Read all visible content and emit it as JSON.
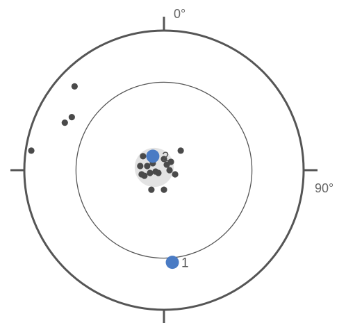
{
  "chart_data": {
    "type": "scatter",
    "title": "",
    "axes": {
      "north_label": "0°",
      "east_label": "90°"
    },
    "colors": {
      "primitive_circle": "#555555",
      "inner_circle": "#555555",
      "data_points": "#4a4a4a",
      "mean_poles": "#4a7bc4",
      "confidence_cone": "#e3e3e3",
      "labels": "#666666"
    },
    "inner_circle_ratio": 0.63,
    "confidence_cone_ratio": 0.14,
    "points": [
      {
        "x": -0.64,
        "y": 0.6
      },
      {
        "x": -0.66,
        "y": 0.38
      },
      {
        "x": -0.71,
        "y": 0.34
      },
      {
        "x": -0.95,
        "y": 0.14
      },
      {
        "x": 0.12,
        "y": 0.14
      },
      {
        "x": -0.15,
        "y": 0.1
      },
      {
        "x": -0.08,
        "y": 0.05
      },
      {
        "x": 0.0,
        "y": 0.08
      },
      {
        "x": -0.12,
        "y": 0.03
      },
      {
        "x": -0.06,
        "y": -0.01
      },
      {
        "x": -0.1,
        "y": -0.02
      },
      {
        "x": -0.04,
        "y": -0.02
      },
      {
        "x": -0.16,
        "y": -0.03
      },
      {
        "x": -0.14,
        "y": -0.04
      },
      {
        "x": 0.02,
        "y": 0.04
      },
      {
        "x": 0.05,
        "y": 0.06
      },
      {
        "x": 0.04,
        "y": 0.0
      },
      {
        "x": 0.08,
        "y": -0.03
      },
      {
        "x": -0.09,
        "y": -0.14
      },
      {
        "x": 0.0,
        "y": -0.14
      },
      {
        "x": -0.17,
        "y": 0.03
      }
    ],
    "mean_poles": [
      {
        "label": "1",
        "x": 0.06,
        "y": -0.66
      },
      {
        "label": "2",
        "x": -0.08,
        "y": 0.1
      }
    ]
  }
}
